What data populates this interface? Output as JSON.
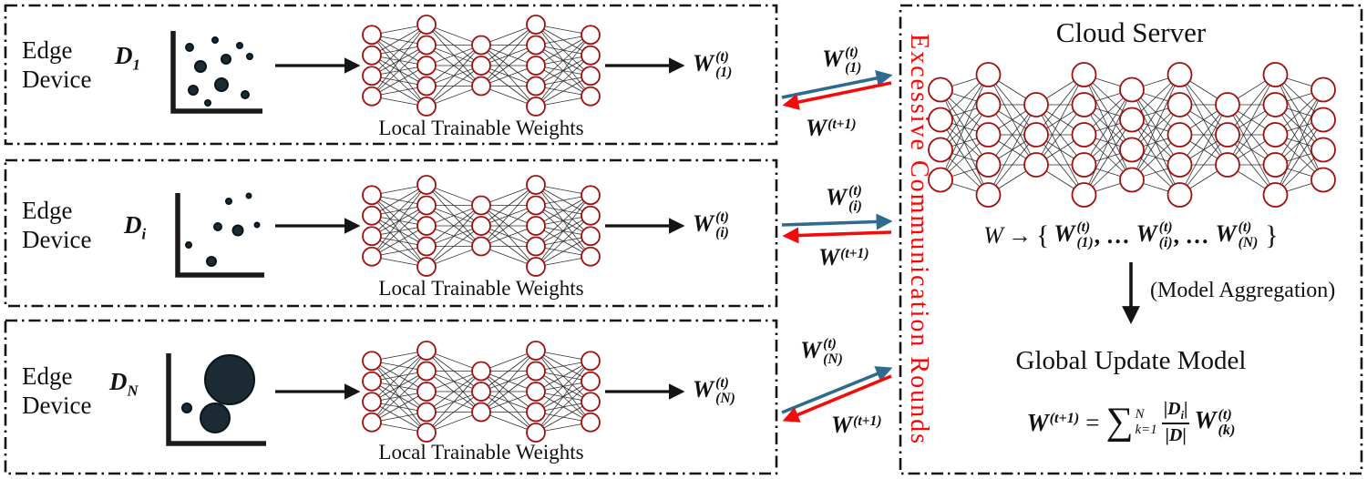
{
  "colors": {
    "upload_arrow": "#2e6b8f",
    "download_arrow": "#f30b0b",
    "excessive_label": "#fa0505",
    "nn_node_stroke": "#a01010"
  },
  "edge_devices": [
    {
      "label": "Edge Device",
      "dataset": {
        "main": "D",
        "sub": "1"
      },
      "caption": "Local Trainable Weights",
      "weight": {
        "main": "W",
        "sup": "(t)",
        "sub": "(1)"
      }
    },
    {
      "label": "Edge Device",
      "dataset": {
        "main": "D",
        "sub": "i"
      },
      "caption": "Local Trainable Weights",
      "weight": {
        "main": "W",
        "sup": "(t)",
        "sub": "(i)"
      }
    },
    {
      "label": "Edge Device",
      "dataset": {
        "main": "D",
        "sub": "N"
      },
      "caption": "Local Trainable Weights",
      "weight": {
        "main": "W",
        "sup": "(t)",
        "sub": "(N)"
      }
    }
  ],
  "comm": {
    "vertical_label": "Excessive Communication Rounds",
    "links": [
      {
        "upload": {
          "main": "W",
          "sup": "(t)",
          "sub": "(1)"
        },
        "download": {
          "main": "W",
          "sup": "(t+1)"
        }
      },
      {
        "upload": {
          "main": "W",
          "sup": "(t)",
          "sub": "(i)"
        },
        "download": {
          "main": "W",
          "sup": "(t+1)"
        }
      },
      {
        "upload": {
          "main": "W",
          "sup": "(t)",
          "sub": "(N)"
        },
        "download": {
          "main": "W",
          "sup": "(t+1)"
        }
      }
    ]
  },
  "cloud": {
    "title": "Cloud Server",
    "distribution": {
      "lhs": "W",
      "arrow": "→",
      "open_brace": "{",
      "terms": [
        {
          "main": "W",
          "sup": "(t)",
          "sub": "(1)",
          "sep": ", …"
        },
        {
          "main": "W",
          "sup": "(t)",
          "sub": "(i)",
          "sep": ", …"
        },
        {
          "main": "W",
          "sup": "(t)",
          "sub": "(N)",
          "sep": ""
        }
      ],
      "close_brace": "}"
    },
    "aggregation_note": "(Model Aggregation)",
    "global_title": "Global Update Model",
    "formula": {
      "lhs": {
        "main": "W",
        "sup": "(t+1)"
      },
      "equals": "=",
      "sigma": "∑",
      "sigma_top": "N",
      "sigma_bottom": "k=1",
      "frac": {
        "num_open": "|",
        "num_main": "D",
        "num_sub": "i",
        "num_close": "|",
        "den_open": "|",
        "den_main": "D",
        "den_close": "|"
      },
      "rhs": {
        "main": "W",
        "sup": "(t)",
        "sub": "(k)"
      }
    }
  }
}
